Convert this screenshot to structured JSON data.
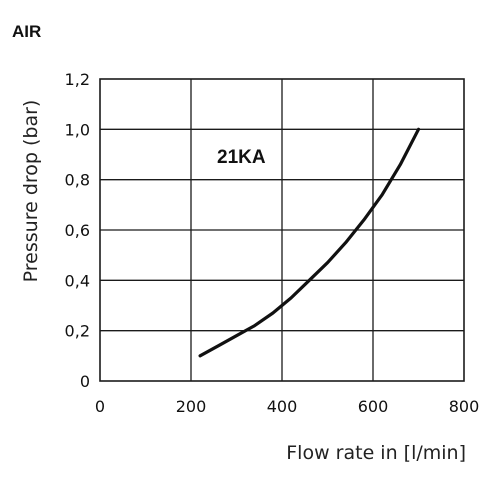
{
  "chart_data": {
    "type": "line",
    "title": "AIR",
    "xlabel": "Flow rate in [l/min]",
    "ylabel": "Pressure drop (bar)",
    "xlim": [
      0,
      800
    ],
    "ylim": [
      0,
      1.2
    ],
    "x_ticks": [
      {
        "value": 0,
        "label": "0"
      },
      {
        "value": 200,
        "label": "200"
      },
      {
        "value": 400,
        "label": "400"
      },
      {
        "value": 600,
        "label": "600"
      },
      {
        "value": 800,
        "label": "800"
      }
    ],
    "y_ticks": [
      {
        "value": 0,
        "label": "0"
      },
      {
        "value": 0.2,
        "label": "0,2"
      },
      {
        "value": 0.4,
        "label": "0,4"
      },
      {
        "value": 0.6,
        "label": "0,6"
      },
      {
        "value": 0.8,
        "label": "0,8"
      },
      {
        "value": 1.0,
        "label": "1,0"
      },
      {
        "value": 1.2,
        "label": "1,2"
      }
    ],
    "grid": true,
    "series": [
      {
        "name": "21KA",
        "x": [
          220,
          260,
          300,
          340,
          380,
          420,
          460,
          500,
          540,
          580,
          620,
          660,
          700
        ],
        "y": [
          0.1,
          0.14,
          0.18,
          0.22,
          0.27,
          0.33,
          0.4,
          0.47,
          0.55,
          0.64,
          0.74,
          0.86,
          1.0
        ]
      }
    ]
  }
}
